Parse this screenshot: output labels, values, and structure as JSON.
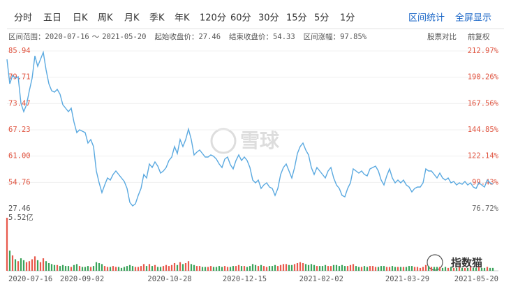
{
  "toolbar": {
    "tabs": [
      "分时",
      "五日",
      "日K",
      "周K",
      "月K",
      "季K",
      "年K",
      "120分",
      "60分",
      "30分",
      "15分",
      "5分",
      "1分"
    ],
    "actions": [
      "区间统计",
      "全屏显示"
    ]
  },
  "info": {
    "range_label": "区间范围：",
    "range_start": "2020-07-16",
    "range_sep": "～",
    "range_end": "2021-05-20",
    "start_close_label": "起始收盘价：",
    "end_close_label": "结束收盘价：",
    "end_close": 54.33,
    "change_label": "区间涨幅：",
    "change": {
      "value": 97.85,
      "label": "97.85%"
    },
    "right": [
      "股票对比",
      "前复权"
    ]
  },
  "watermark": "雪球",
  "brand": "指数猫",
  "chart_data": {
    "type": "line",
    "start_close": 27.46,
    "color": "#5aa9e0",
    "up_color": "#e8594c",
    "down_color": "#3aa35a",
    "tick_color": "#e0533f",
    "xticks": [
      "2020-07-16",
      "2020-09-02",
      "2020-10-28",
      "2020-12-15",
      "2021-02-02",
      "2021-03-29",
      "2021-05-20"
    ],
    "ylim": [
      48.53,
      85.94
    ],
    "yticks": [
      85.94,
      79.71,
      73.47,
      67.23,
      {
        "value": 61.0,
        "label": "61.00"
      },
      54.76
    ],
    "y2lim": [
      76.72,
      212.97
    ],
    "y2ticks": [
      {
        "value": 212.97,
        "label": "212.97%"
      },
      {
        "value": 190.26,
        "label": "190.26%"
      },
      {
        "value": 167.56,
        "label": "167.56%"
      },
      {
        "value": 144.85,
        "label": "144.85%"
      },
      {
        "value": 122.14,
        "label": "122.14%"
      },
      {
        "value": 99.43,
        "label": "99.43%"
      },
      {
        "value": 76.72,
        "label": "76.72%"
      }
    ],
    "vlim": [
      0,
      5.52
    ],
    "vticks": [
      {
        "value": 5.52,
        "label": "5.52亿"
      }
    ],
    "values": [
      83.95,
      78.16,
      80.15,
      79.48,
      79.82,
      73.53,
      71.54,
      73.19,
      76.5,
      79.48,
      84.78,
      82.3,
      83.95,
      85.61,
      81.47,
      78.16,
      76.5,
      76.17,
      76.84,
      75.68,
      73.19,
      72.37,
      71.54,
      72.37,
      69.06,
      66.57,
      67.23,
      66.9,
      66.57,
      64.09,
      64.92,
      63.26,
      57.47,
      54.65,
      52.34,
      54.16,
      55.81,
      55.32,
      56.64,
      57.47,
      56.64,
      55.81,
      54.99,
      53.33,
      50.02,
      49.19,
      49.69,
      51.68,
      53.33,
      56.64,
      55.81,
      59.12,
      58.3,
      59.62,
      58.63,
      56.97,
      57.47,
      58.3,
      59.95,
      60.78,
      63.26,
      61.61,
      64.92,
      63.26,
      64.92,
      67.4,
      64.92,
      61.28,
      61.94,
      62.44,
      61.61,
      60.78,
      60.78,
      61.28,
      60.95,
      60.28,
      59.12,
      58.3,
      60.28,
      60.78,
      58.96,
      57.97,
      59.95,
      61.28,
      59.95,
      60.78,
      59.95,
      58.3,
      55.32,
      54.65,
      55.32,
      53.33,
      54.16,
      54.65,
      53.66,
      53.33,
      51.68,
      53.33,
      56.64,
      58.3,
      59.12,
      57.47,
      55.81,
      58.3,
      61.61,
      63.26,
      64.09,
      62.44,
      61.28,
      58.3,
      56.64,
      58.3,
      57.47,
      56.64,
      55.81,
      57.47,
      58.3,
      55.81,
      54.16,
      53.33,
      51.68,
      51.34,
      53.33,
      54.65,
      57.97,
      57.47,
      56.97,
      57.47,
      56.64,
      56.31,
      57.97,
      58.3,
      58.63,
      57.47,
      55.32,
      54.16,
      56.31,
      57.97,
      55.81,
      54.65,
      55.32,
      54.65,
      55.32,
      54.16,
      53.66,
      52.5,
      53.33,
      53.66,
      53.66,
      54.65,
      57.97,
      57.47,
      57.47,
      56.64,
      55.81,
      56.97,
      55.81,
      55.32,
      55.81,
      54.65,
      54.99,
      54.16,
      54.65,
      54.32,
      54.99,
      54.16,
      54.65,
      53.66,
      53.33,
      54.65,
      54.16,
      53.66,
      55.32,
      54.65,
      54.33
    ],
    "volumes": [
      5.52,
      2.1,
      1.6,
      1.2,
      1.0,
      1.3,
      1.1,
      0.9,
      1.0,
      1.2,
      1.5,
      1.1,
      0.9,
      1.3,
      1.0,
      0.8,
      0.7,
      0.6,
      0.6,
      0.5,
      0.6,
      0.5,
      0.5,
      0.4,
      0.6,
      0.7,
      0.5,
      0.4,
      0.4,
      0.5,
      0.4,
      0.5,
      0.9,
      0.8,
      0.7,
      0.5,
      0.4,
      0.4,
      0.5,
      0.4,
      0.4,
      0.3,
      0.4,
      0.5,
      0.6,
      0.5,
      0.4,
      0.4,
      0.5,
      0.7,
      0.5,
      0.7,
      0.5,
      0.6,
      0.4,
      0.4,
      0.5,
      0.6,
      0.5,
      0.6,
      0.8,
      0.6,
      0.9,
      0.7,
      0.8,
      1.0,
      0.7,
      0.6,
      0.5,
      0.5,
      0.4,
      0.4,
      0.4,
      0.5,
      0.4,
      0.4,
      0.5,
      0.4,
      0.5,
      0.4,
      0.4,
      0.5,
      0.5,
      0.6,
      0.5,
      0.5,
      0.4,
      0.5,
      0.7,
      0.6,
      0.5,
      0.6,
      0.5,
      0.4,
      0.5,
      0.5,
      0.6,
      0.5,
      0.6,
      0.7,
      0.7,
      0.6,
      0.6,
      0.7,
      0.8,
      0.9,
      0.8,
      0.7,
      0.6,
      0.7,
      0.6,
      0.5,
      0.5,
      0.5,
      0.6,
      0.5,
      0.5,
      0.6,
      0.6,
      0.5,
      0.6,
      0.5,
      0.5,
      0.6,
      0.7,
      0.5,
      0.4,
      0.4,
      0.5,
      0.4,
      0.5,
      0.5,
      0.4,
      0.4,
      0.5,
      0.5,
      0.4,
      0.4,
      0.5,
      0.4,
      0.4,
      0.4,
      0.4,
      0.4,
      0.5,
      0.5,
      0.4,
      0.4,
      0.3,
      0.4,
      0.6,
      0.5,
      0.4,
      0.4,
      0.4,
      0.4,
      0.3,
      0.4,
      0.3,
      0.4,
      0.3,
      0.3,
      0.4,
      0.3,
      0.3,
      0.3,
      0.4,
      0.3,
      0.3,
      0.4,
      0.3,
      0.3,
      0.4,
      0.3,
      0.3
    ]
  }
}
